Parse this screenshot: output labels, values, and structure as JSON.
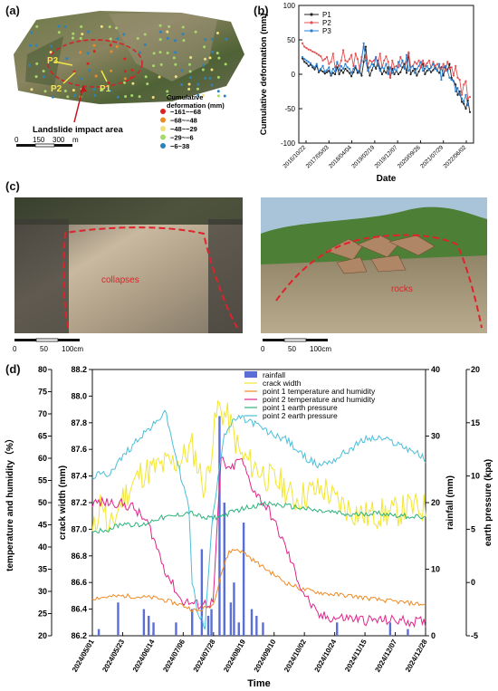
{
  "panel_a": {
    "label": "(a)",
    "points": [
      "P3",
      "P2",
      "P1"
    ],
    "impact_label": "Landslide impact area",
    "legend_title": "Cumulative deformation (mm)",
    "legend": [
      {
        "text": "−161~−68",
        "color": "#e02020"
      },
      {
        "text": "−68~−48",
        "color": "#f08a24"
      },
      {
        "text": "−48~−29",
        "color": "#f4e07a"
      },
      {
        "text": "−29~−6",
        "color": "#a6d96a"
      },
      {
        "text": "−6~38",
        "color": "#2b83ba"
      }
    ],
    "scale": {
      "t0": "0",
      "t1": "150",
      "t2": "300",
      "unit": "m"
    }
  },
  "panel_b": {
    "label": "(b)"
  },
  "panel_c": {
    "label": "(c)",
    "photo1_text": "collapses",
    "photo2_text": "rocks",
    "scale": {
      "t0": "0",
      "t1": "50",
      "t2": "100cm"
    }
  },
  "panel_d": {
    "label": "(d)"
  },
  "chart_data": [
    {
      "type": "line",
      "xlabel": "Date",
      "ylabel": "Cumulative deformation (mm)",
      "ylim": [
        -100,
        100
      ],
      "yticks": [
        -100,
        -50,
        0,
        50,
        100
      ],
      "x_ticks": [
        "2016/10/22",
        "2017/05/03",
        "2018/04/04",
        "2019/02/19",
        "2019/12/07",
        "2020/09/26",
        "2021/07/29",
        "2022/06/02"
      ],
      "legend_position": "top-left",
      "series": [
        {
          "name": "P1",
          "color": "#222222",
          "values": [
            23,
            18,
            16,
            12,
            14,
            10,
            7,
            12,
            3,
            6,
            4,
            1,
            3,
            5,
            -2,
            2,
            0,
            10,
            0,
            6,
            2,
            8,
            5,
            2,
            -3,
            3,
            10,
            2,
            5,
            -2,
            18,
            40,
            10,
            -2,
            6,
            14,
            8,
            20,
            8,
            0,
            5,
            2,
            10,
            -5,
            8,
            0,
            5,
            0,
            3,
            10,
            15,
            2,
            30,
            0,
            5,
            8,
            -2,
            4,
            10,
            15,
            0,
            5,
            8,
            3,
            6,
            12,
            5,
            2,
            10,
            -2,
            10,
            6,
            15,
            -5,
            -10,
            -15,
            -30,
            -25,
            -40,
            -43,
            -50,
            -38,
            -55
          ]
        },
        {
          "name": "P2",
          "color": "#e25050",
          "values": [
            45,
            40,
            38,
            36,
            35,
            33,
            32,
            30,
            28,
            26,
            20,
            22,
            25,
            15,
            18,
            30,
            10,
            16,
            12,
            20,
            35,
            20,
            18,
            22,
            28,
            12,
            30,
            22,
            8,
            25,
            40,
            26,
            15,
            20,
            18,
            20,
            25,
            16,
            30,
            10,
            20,
            26,
            18,
            -5,
            20,
            10,
            12,
            10,
            25,
            18,
            10,
            18,
            32,
            10,
            12,
            18,
            15,
            20,
            10,
            20,
            12,
            16,
            20,
            10,
            18,
            12,
            15,
            10,
            8,
            15,
            5,
            18,
            8,
            10,
            -2,
            12,
            -5,
            -8,
            -30,
            -15,
            -10,
            -35,
            -33
          ]
        },
        {
          "name": "P3",
          "color": "#2a7fd4",
          "values": [
            25,
            22,
            20,
            18,
            16,
            12,
            10,
            15,
            5,
            8,
            12,
            4,
            6,
            10,
            0,
            8,
            4,
            18,
            6,
            12,
            8,
            15,
            10,
            8,
            2,
            8,
            12,
            5,
            2,
            20,
            45,
            20,
            5,
            10,
            15,
            12,
            25,
            12,
            5,
            10,
            8,
            15,
            0,
            10,
            2,
            8,
            5,
            18,
            12,
            20,
            8,
            28,
            5,
            10,
            12,
            2,
            8,
            12,
            18,
            5,
            8,
            12,
            6,
            10,
            15,
            8,
            5,
            15,
            -8,
            10,
            12,
            5,
            -5,
            -8,
            -10,
            -25,
            -20,
            -30,
            -35,
            -40,
            -30,
            -45
          ]
        }
      ]
    },
    {
      "type": "line",
      "xlabel": "Time",
      "ylabel_left1": "temperature and humidity（%）",
      "ylabel_left2": "crack width (mm)",
      "ylabel_right1": "rainfall (mm)",
      "ylabel_right2": "earth pressure (kpa)",
      "axes": {
        "temp_humidity": {
          "ylim": [
            20,
            80
          ],
          "ticks": [
            20,
            25,
            30,
            35,
            40,
            45,
            50,
            55,
            60,
            65,
            70,
            75,
            80
          ]
        },
        "crack_width": {
          "ylim": [
            86.2,
            88.2
          ],
          "ticks": [
            86.2,
            86.4,
            86.6,
            86.8,
            87.0,
            87.2,
            87.4,
            87.6,
            87.8,
            88.0,
            88.2
          ]
        },
        "rainfall": {
          "ylim": [
            0,
            40
          ],
          "ticks": [
            0,
            10,
            20,
            30,
            40
          ]
        },
        "earth_pressure": {
          "ylim": [
            -5,
            20
          ],
          "ticks": [
            -5,
            0,
            5,
            10,
            15,
            20
          ]
        }
      },
      "x_ticks": [
        "2024/05/01",
        "2024/05/23",
        "2024/06/14",
        "2024/07/06",
        "2024/07/28",
        "2024/08/19",
        "2024/09/10",
        "2024/10/02",
        "2024/10/24",
        "2024/11/15",
        "2024/12/07",
        "2024/12/28"
      ],
      "legend_position": "top-right",
      "series": [
        {
          "name": "rainfall",
          "color": "#5a6fd6",
          "axis": "rainfall",
          "kind": "bar",
          "points": [
            [
              4,
              1
            ],
            [
              16,
              5
            ],
            [
              32,
              4
            ],
            [
              35,
              3
            ],
            [
              38,
              2
            ],
            [
              52,
              2
            ],
            [
              62,
              4
            ],
            [
              68,
              13
            ],
            [
              72,
              3
            ],
            [
              74,
              4
            ],
            [
              79,
              33
            ],
            [
              82,
              20
            ],
            [
              86,
              5
            ],
            [
              88,
              8
            ],
            [
              91,
              2
            ],
            [
              94,
              17
            ],
            [
              99,
              4
            ],
            [
              102,
              3
            ],
            [
              106,
              2
            ],
            [
              152,
              2
            ],
            [
              185,
              2
            ],
            [
              196,
              1
            ]
          ]
        },
        {
          "name": "crack width",
          "color": "#f2e62e",
          "axis": "crack_width",
          "anchors": [
            [
              0,
              86.95
            ],
            [
              6,
              87.25
            ],
            [
              10,
              86.95
            ],
            [
              18,
              87.22
            ],
            [
              30,
              87.42
            ],
            [
              45,
              87.48
            ],
            [
              55,
              87.52
            ],
            [
              62,
              87.62
            ],
            [
              70,
              87.3
            ],
            [
              78,
              87.92
            ],
            [
              85,
              87.82
            ],
            [
              92,
              87.55
            ],
            [
              100,
              87.48
            ],
            [
              110,
              87.38
            ],
            [
              118,
              87.34
            ],
            [
              125,
              87.22
            ],
            [
              135,
              87.28
            ],
            [
              145,
              87.3
            ],
            [
              150,
              87.22
            ],
            [
              160,
              87.15
            ],
            [
              170,
              87.1
            ],
            [
              178,
              87.12
            ],
            [
              186,
              87.12
            ],
            [
              196,
              87.16
            ],
            [
              207,
              87.16
            ]
          ]
        },
        {
          "name": "point 1 temperature and humidity",
          "color": "#f08a24",
          "axis": "temp_humidity",
          "anchors": [
            [
              0,
              28.5
            ],
            [
              20,
              29
            ],
            [
              40,
              28.5
            ],
            [
              55,
              27
            ],
            [
              65,
              25.5
            ],
            [
              75,
              27
            ],
            [
              80,
              34
            ],
            [
              85,
              39
            ],
            [
              90,
              39.5
            ],
            [
              95,
              38.5
            ],
            [
              100,
              37
            ],
            [
              110,
              34.5
            ],
            [
              120,
              32
            ],
            [
              130,
              30.5
            ],
            [
              145,
              29.5
            ],
            [
              160,
              29
            ],
            [
              180,
              28
            ],
            [
              207,
              27
            ]
          ]
        },
        {
          "name": "point 2 temperature and humidity",
          "color": "#e0248a",
          "axis": "temp_humidity",
          "anchors": [
            [
              0,
              50
            ],
            [
              15,
              50
            ],
            [
              25,
              49
            ],
            [
              35,
              45
            ],
            [
              45,
              35
            ],
            [
              55,
              28
            ],
            [
              65,
              27
            ],
            [
              75,
              27.5
            ],
            [
              80,
              60
            ],
            [
              85,
              57
            ],
            [
              92,
              60
            ],
            [
              100,
              53
            ],
            [
              110,
              48
            ],
            [
              120,
              40
            ],
            [
              130,
              30.5
            ],
            [
              140,
              24.5
            ],
            [
              150,
              24
            ],
            [
              160,
              24
            ],
            [
              170,
              23.5
            ],
            [
              190,
              23.5
            ],
            [
              207,
              23
            ]
          ]
        },
        {
          "name": "point 1 earth pressure",
          "color": "#2db37a",
          "axis": "earth_pressure",
          "anchors": [
            [
              0,
              4.8
            ],
            [
              10,
              5.0
            ],
            [
              20,
              5.6
            ],
            [
              30,
              5.3
            ],
            [
              40,
              6.0
            ],
            [
              50,
              6.2
            ],
            [
              60,
              6.6
            ],
            [
              70,
              6.0
            ],
            [
              80,
              6.2
            ],
            [
              90,
              6.8
            ],
            [
              100,
              7.2
            ],
            [
              110,
              7.4
            ],
            [
              120,
              7.2
            ],
            [
              130,
              7.0
            ],
            [
              140,
              6.7
            ],
            [
              150,
              6.6
            ],
            [
              160,
              6.3
            ],
            [
              170,
              6.5
            ],
            [
              180,
              6.5
            ],
            [
              190,
              6.3
            ],
            [
              200,
              6.2
            ],
            [
              207,
              6.0
            ]
          ]
        },
        {
          "name": "point 2 earth pressure",
          "color": "#4bbfd8",
          "axis": "earth_pressure",
          "anchors": [
            [
              0,
              10
            ],
            [
              10,
              10.2
            ],
            [
              20,
              12
            ],
            [
              30,
              13.8
            ],
            [
              40,
              15
            ],
            [
              45,
              16.2
            ],
            [
              50,
              13
            ],
            [
              55,
              10
            ],
            [
              60,
              7
            ],
            [
              62,
              0
            ],
            [
              65,
              -2.5
            ],
            [
              68,
              -3.5
            ],
            [
              70,
              -4.2
            ],
            [
              74,
              5
            ],
            [
              78,
              10
            ],
            [
              82,
              14
            ],
            [
              90,
              15.5
            ],
            [
              100,
              15
            ],
            [
              110,
              14
            ],
            [
              120,
              13.5
            ],
            [
              130,
              12
            ],
            [
              140,
              11
            ],
            [
              150,
              11.5
            ],
            [
              160,
              12.5
            ],
            [
              170,
              13.5
            ],
            [
              180,
              13.5
            ],
            [
              190,
              13
            ],
            [
              200,
              12.3
            ],
            [
              207,
              11.5
            ]
          ]
        }
      ]
    }
  ]
}
